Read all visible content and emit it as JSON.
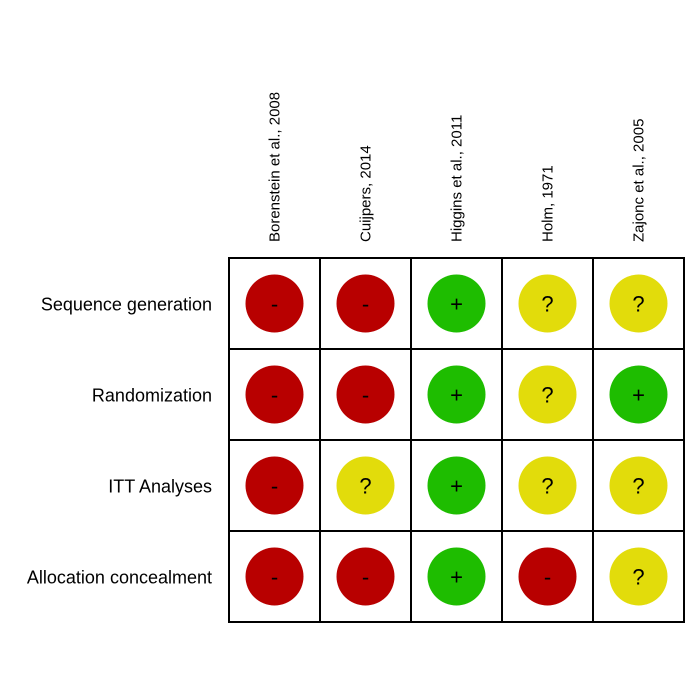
{
  "chart_data": {
    "type": "heatmap",
    "title": "",
    "studies": [
      "Borenstein et al., 2008",
      "Cuijpers, 2014",
      "Higgins et al., 2011",
      "Holm, 1971",
      "Zajonc et al., 2005"
    ],
    "domains": [
      "Sequence generation",
      "Randomization",
      "ITT Analyses",
      "Allocation concealment"
    ],
    "ratings": [
      [
        "-",
        "-",
        "+",
        "?",
        "?"
      ],
      [
        "-",
        "-",
        "+",
        "?",
        "+"
      ],
      [
        "-",
        "?",
        "+",
        "?",
        "?"
      ],
      [
        "-",
        "-",
        "+",
        "-",
        "?"
      ]
    ],
    "legend": {
      "-": {
        "color": "#b80000"
      },
      "+": {
        "color": "#1ebd00"
      },
      "?": {
        "color": "#e2dc0b"
      }
    }
  }
}
